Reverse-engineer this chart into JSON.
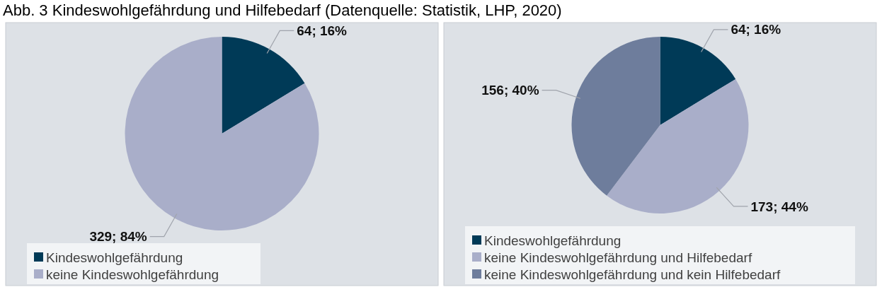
{
  "chart_data": [
    {
      "type": "pie",
      "title": "Abb. 3 Kindeswohlgefährdung und Hilfebedarf (Datenquelle: Statistik, LHP, 2020)",
      "categories": [
        "Kindeswohlgefährdung",
        "keine Kindeswohlgefährdung"
      ],
      "values": [
        64,
        329
      ],
      "colors": [
        "#003a57",
        "#a9aec9"
      ],
      "value_labels": [
        "64; 16%",
        "329; 84%"
      ],
      "legend": "bottom left"
    },
    {
      "type": "pie",
      "categories": [
        "Kindeswohlgefährdung",
        "keine Kindeswohlgefährdung und Hilfebedarf",
        "keine Kindeswohlgefährdung und kein Hilfebedarf"
      ],
      "values": [
        64,
        173,
        156
      ],
      "colors": [
        "#003a57",
        "#a9aec9",
        "#6e7d9c"
      ],
      "value_labels": [
        "64; 16%",
        "173; 44%",
        "156; 40%"
      ],
      "legend": "bottom"
    }
  ]
}
